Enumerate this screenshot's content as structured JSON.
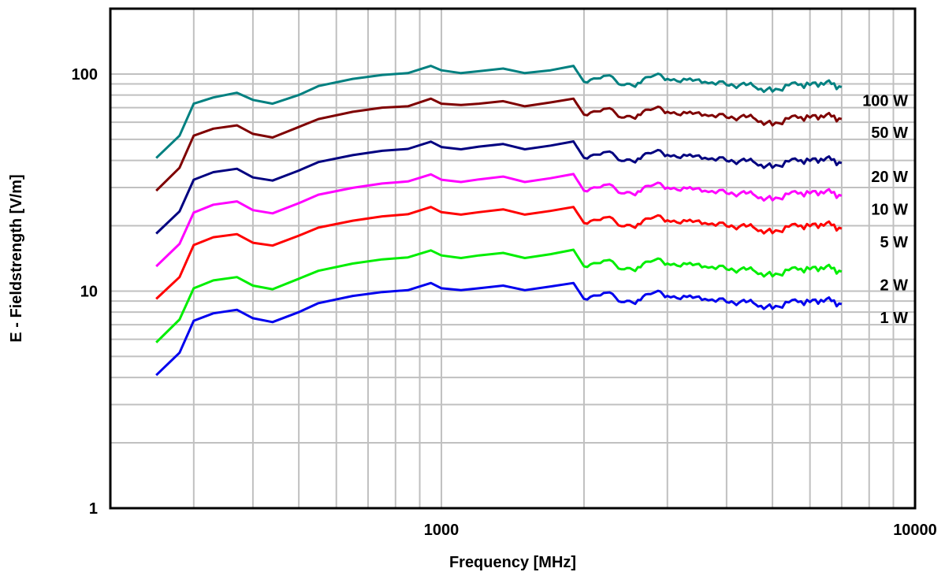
{
  "chart_data": {
    "type": "line",
    "title": "",
    "xlabel": "Frequency [MHz]",
    "ylabel": "E - Fieldstrength [V/m]",
    "x_scale": "log",
    "y_scale": "log",
    "xlim": [
      200,
      10000
    ],
    "ylim": [
      1,
      200
    ],
    "x_tick_labels": [
      "1000",
      "10000"
    ],
    "y_tick_labels": [
      "1",
      "10",
      "100"
    ],
    "grid": true,
    "x": [
      250,
      280,
      300,
      330,
      370,
      400,
      440,
      500,
      550,
      650,
      750,
      850,
      950,
      1000,
      1100,
      1200,
      1350,
      1500,
      1700,
      1900,
      2000,
      2200,
      2400,
      2600,
      2800,
      3000,
      3300,
      3600,
      4000,
      4300,
      4600,
      5000,
      5500,
      6000,
      6500,
      7000
    ],
    "reference_series": "1 W",
    "series": [
      {
        "name": "100 W",
        "color": "#008080",
        "values": [
          41,
          52,
          73,
          78,
          82,
          76,
          73,
          80,
          88,
          95,
          99,
          101,
          109,
          104,
          101,
          103,
          106,
          101,
          104,
          109,
          92,
          98,
          89,
          91,
          98,
          95,
          94,
          92,
          89,
          90,
          87,
          83,
          91,
          89,
          92,
          87
        ]
      },
      {
        "name": "50 W",
        "color": "#7f0000",
        "values": [
          29,
          37,
          52,
          56,
          58,
          53,
          51,
          57,
          62,
          67,
          70,
          71,
          77,
          73,
          72,
          73,
          75,
          71,
          74,
          77,
          65,
          69,
          63,
          65,
          69,
          67,
          66,
          65,
          63,
          64,
          62,
          58,
          64,
          63,
          65,
          62
        ]
      },
      {
        "name": "20 W",
        "color": "#000080",
        "values": [
          18.4,
          23.3,
          32.6,
          35.3,
          36.6,
          33.4,
          32.3,
          35.9,
          39.3,
          42.3,
          44.3,
          45.2,
          48.8,
          46.1,
          45.0,
          46.3,
          47.6,
          45.0,
          46.8,
          48.9,
          41.1,
          43.6,
          39.8,
          40.8,
          43.6,
          42.4,
          42.0,
          41.1,
          39.8,
          40.2,
          38.9,
          37.0,
          40.6,
          39.8,
          41.1,
          38.9
        ]
      },
      {
        "name": "10 W",
        "color": "#ff00ff",
        "values": [
          13.0,
          16.5,
          23.0,
          25.0,
          25.9,
          23.6,
          22.8,
          25.4,
          27.8,
          29.9,
          31.3,
          32.0,
          34.5,
          32.6,
          31.8,
          32.7,
          33.7,
          31.8,
          33.1,
          34.6,
          29.0,
          30.8,
          28.2,
          28.8,
          30.8,
          30.0,
          29.7,
          29.0,
          28.2,
          28.5,
          27.5,
          26.2,
          28.7,
          28.2,
          29.0,
          27.5
        ]
      },
      {
        "name": "5 W",
        "color": "#ff0000",
        "values": [
          9.2,
          11.6,
          16.3,
          17.7,
          18.3,
          16.7,
          16.2,
          18.0,
          19.6,
          21.1,
          22.1,
          22.6,
          24.4,
          23.1,
          22.5,
          23.1,
          23.8,
          22.5,
          23.4,
          24.4,
          20.6,
          21.8,
          19.9,
          20.4,
          21.8,
          21.2,
          21.0,
          20.6,
          19.9,
          20.1,
          19.4,
          18.5,
          20.3,
          19.9,
          20.6,
          19.4
        ]
      },
      {
        "name": "2 W",
        "color": "#00ee00",
        "values": [
          5.8,
          7.4,
          10.3,
          11.2,
          11.6,
          10.6,
          10.2,
          11.4,
          12.4,
          13.4,
          14.0,
          14.3,
          15.4,
          14.6,
          14.2,
          14.6,
          15.0,
          14.2,
          14.8,
          15.5,
          13.0,
          13.8,
          12.6,
          12.9,
          13.8,
          13.4,
          13.3,
          13.0,
          12.6,
          12.7,
          12.3,
          11.7,
          12.8,
          12.6,
          13.0,
          12.3
        ]
      },
      {
        "name": "1 W",
        "color": "#0000ee",
        "values": [
          4.1,
          5.2,
          7.3,
          7.9,
          8.2,
          7.5,
          7.2,
          8.0,
          8.8,
          9.5,
          9.9,
          10.1,
          10.9,
          10.3,
          10.1,
          10.3,
          10.6,
          10.1,
          10.5,
          10.9,
          9.2,
          9.8,
          8.9,
          9.1,
          9.8,
          9.5,
          9.4,
          9.2,
          8.9,
          9.0,
          8.7,
          8.3,
          9.1,
          8.9,
          9.2,
          8.7
        ]
      }
    ]
  }
}
